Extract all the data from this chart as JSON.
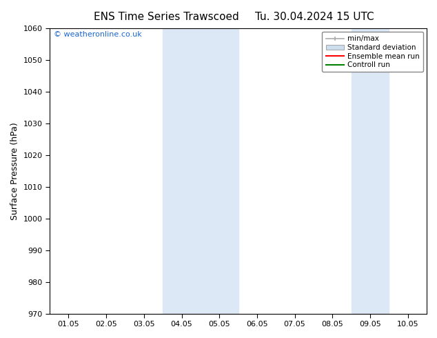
{
  "title_left": "ENS Time Series Trawscoed",
  "title_right": "Tu. 30.04.2024 15 UTC",
  "ylabel": "Surface Pressure (hPa)",
  "ylim": [
    970,
    1060
  ],
  "yticks": [
    970,
    980,
    990,
    1000,
    1010,
    1020,
    1030,
    1040,
    1050,
    1060
  ],
  "xtick_labels": [
    "01.05",
    "02.05",
    "03.05",
    "04.05",
    "05.05",
    "06.05",
    "07.05",
    "08.05",
    "09.05",
    "10.05"
  ],
  "background_color": "#ffffff",
  "plot_bg_color": "#ffffff",
  "shaded_bands": [
    {
      "xstart": 3,
      "xend": 5,
      "color": "#dce8f5"
    },
    {
      "xstart": 8,
      "xend": 9,
      "color": "#dce8f5"
    }
  ],
  "watermark_text": "© weatheronline.co.uk",
  "watermark_color": "#1a66cc",
  "legend_items": [
    {
      "label": "min/max",
      "color": "#aaaaaa",
      "style": "line_with_caps"
    },
    {
      "label": "Standard deviation",
      "color": "#ccddee",
      "style": "filled_box"
    },
    {
      "label": "Ensemble mean run",
      "color": "#ff0000",
      "style": "line"
    },
    {
      "label": "Controll run",
      "color": "#008000",
      "style": "line"
    }
  ],
  "title_fontsize": 11,
  "tick_fontsize": 8,
  "label_fontsize": 9,
  "watermark_fontsize": 8,
  "legend_fontsize": 7.5
}
